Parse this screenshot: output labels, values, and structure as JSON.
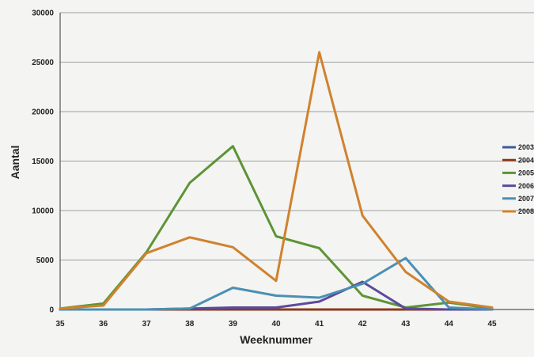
{
  "chart_data": {
    "type": "line",
    "title": "",
    "xlabel": "Weeknummer",
    "ylabel": "Aantal",
    "x": [
      35,
      36,
      37,
      38,
      39,
      40,
      41,
      42,
      43,
      44,
      45
    ],
    "ylim": [
      0,
      30000
    ],
    "yticks": [
      0,
      5000,
      10000,
      15000,
      20000,
      25000,
      30000
    ],
    "grid": true,
    "legend_position": "right",
    "series": [
      {
        "name": "2003",
        "color": "#3b5d9c",
        "values": [
          0,
          0,
          0,
          0,
          0,
          0,
          0,
          0,
          0,
          0,
          0
        ]
      },
      {
        "name": "2004",
        "color": "#8b3a1e",
        "values": [
          0,
          0,
          0,
          0,
          0,
          0,
          0,
          0,
          0,
          0,
          0
        ]
      },
      {
        "name": "2005",
        "color": "#5d9436",
        "values": [
          100,
          600,
          5800,
          12800,
          16500,
          7400,
          6200,
          1400,
          200,
          700,
          100
        ]
      },
      {
        "name": "2006",
        "color": "#5b4b9c",
        "values": [
          0,
          0,
          0,
          100,
          200,
          200,
          800,
          2800,
          100,
          0,
          0
        ]
      },
      {
        "name": "2007",
        "color": "#4a90b4",
        "values": [
          0,
          0,
          0,
          100,
          2200,
          1400,
          1200,
          2600,
          5200,
          200,
          0
        ]
      },
      {
        "name": "2008",
        "color": "#d0822e",
        "values": [
          100,
          400,
          5700,
          7300,
          6300,
          2900,
          26000,
          9500,
          3800,
          800,
          200
        ]
      }
    ]
  }
}
